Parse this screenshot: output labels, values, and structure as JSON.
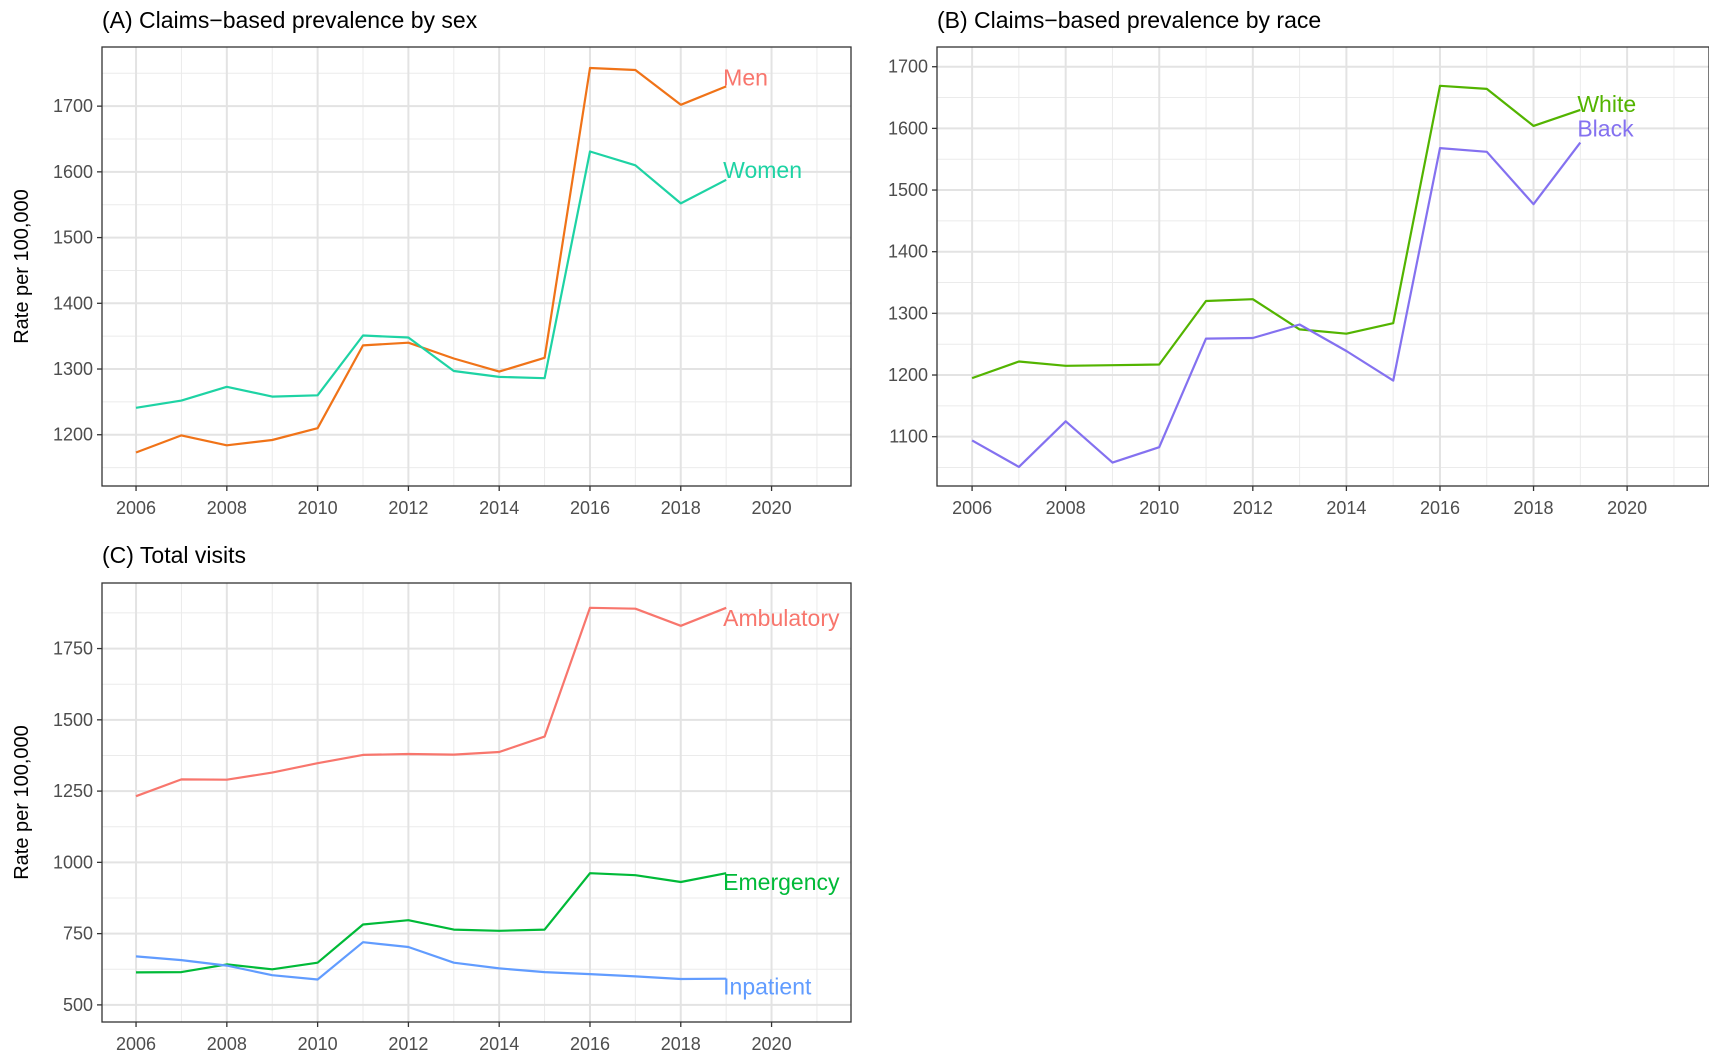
{
  "chart_data": [
    {
      "type": "line",
      "title": "(A) Claims−based prevalence by sex",
      "xlabel": "",
      "ylabel": "Rate per 100,000",
      "x": [
        2006,
        2007,
        2008,
        2009,
        2010,
        2011,
        2012,
        2013,
        2014,
        2015,
        2016,
        2017,
        2018,
        2019
      ],
      "xlim": [
        2005.25,
        2021.75
      ],
      "ylim": [
        1122,
        1790
      ],
      "x_ticks": [
        "2006",
        "2008",
        "2010",
        "2012",
        "2014",
        "2016",
        "2018",
        "2020"
      ],
      "y_ticks": [
        "1200",
        "1300",
        "1400",
        "1500",
        "1600",
        "1700"
      ],
      "grid": true,
      "legend": "direct labels at line ends",
      "series": [
        {
          "name": "Men",
          "color": "#F8766D",
          "line_color": "#F07318",
          "values": [
            1173,
            1199,
            1184,
            1192,
            1210,
            1336,
            1340,
            1316,
            1296,
            1317,
            1758,
            1755,
            1702,
            1730
          ]
        },
        {
          "name": "Women",
          "color": "#1ED3A4",
          "values": [
            1241,
            1252,
            1273,
            1258,
            1260,
            1351,
            1348,
            1297,
            1288,
            1286,
            1631,
            1610,
            1552,
            1588
          ]
        }
      ]
    },
    {
      "type": "line",
      "title": "(B) Claims−based prevalence by race",
      "xlabel": "",
      "ylabel": "",
      "x": [
        2006,
        2007,
        2008,
        2009,
        2010,
        2011,
        2012,
        2013,
        2014,
        2015,
        2016,
        2017,
        2018,
        2019
      ],
      "xlim": [
        2005.25,
        2021.75
      ],
      "ylim": [
        1020,
        1732
      ],
      "x_ticks": [
        "2006",
        "2008",
        "2010",
        "2012",
        "2014",
        "2016",
        "2018",
        "2020"
      ],
      "y_ticks": [
        "1100",
        "1200",
        "1300",
        "1400",
        "1500",
        "1600",
        "1700"
      ],
      "grid": true,
      "legend": "direct labels at line ends",
      "series": [
        {
          "name": "White",
          "color": "#53B400",
          "values": [
            1195,
            1222,
            1215,
            1216,
            1217,
            1320,
            1323,
            1274,
            1267,
            1284,
            1669,
            1664,
            1604,
            1630
          ]
        },
        {
          "name": "Black",
          "color": "#8471F0",
          "values": [
            1094,
            1051,
            1125,
            1058,
            1083,
            1259,
            1260,
            1282,
            1239,
            1191,
            1568,
            1562,
            1477,
            1577
          ]
        }
      ]
    },
    {
      "type": "line",
      "title": "(C) Total visits",
      "xlabel": "",
      "ylabel": "Rate per 100,000",
      "x": [
        2006,
        2007,
        2008,
        2009,
        2010,
        2011,
        2012,
        2013,
        2014,
        2015,
        2016,
        2017,
        2018,
        2019
      ],
      "xlim": [
        2005.25,
        2021.75
      ],
      "ylim": [
        440,
        1980
      ],
      "x_ticks": [
        "2006",
        "2008",
        "2010",
        "2012",
        "2014",
        "2016",
        "2018",
        "2020"
      ],
      "y_ticks": [
        "500",
        "750",
        "1000",
        "1250",
        "1500",
        "1750"
      ],
      "grid": true,
      "legend": "direct labels at line ends",
      "series": [
        {
          "name": "Ambulatory",
          "color": "#F8766D",
          "values": [
            1232,
            1291,
            1290,
            1315,
            1348,
            1377,
            1380,
            1378,
            1387,
            1441,
            1893,
            1890,
            1830,
            1893
          ]
        },
        {
          "name": "Emergency",
          "color": "#00BA38",
          "values": [
            614,
            615,
            642,
            625,
            648,
            782,
            797,
            764,
            760,
            764,
            962,
            955,
            931,
            962
          ]
        },
        {
          "name": "Inpatient",
          "color": "#619CFF",
          "values": [
            670,
            657,
            638,
            604,
            589,
            720,
            703,
            648,
            628,
            615,
            608,
            600,
            591,
            592
          ]
        }
      ]
    }
  ]
}
